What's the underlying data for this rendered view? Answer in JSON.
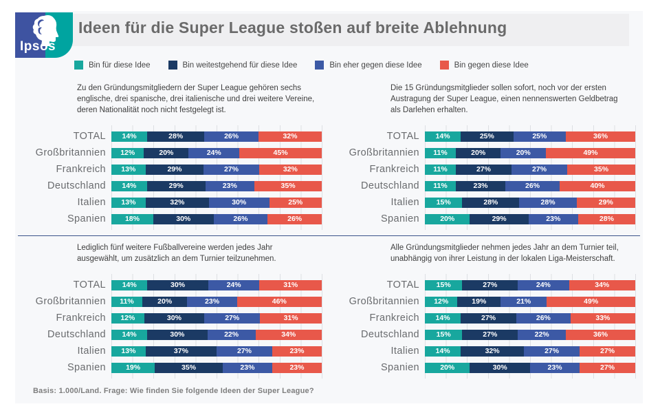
{
  "brand": {
    "logo_text": "Ipsos"
  },
  "header": {
    "title": "Ideen für die Super League stoßen auf breite Ablehnung"
  },
  "legend": {
    "items": [
      {
        "label": "Bin für diese Idee",
        "color": "#18a79e"
      },
      {
        "label": "Bin weitestgehend  für diese Idee",
        "color": "#1b3a64"
      },
      {
        "label": "Bin eher gegen  diese Idee",
        "color": "#3c59a5"
      },
      {
        "label": "Bin gegen  diese Idee",
        "color": "#e8584a"
      }
    ]
  },
  "footer": {
    "note": "Basis:  1.000/Land. Frage: Wie finden Sie folgende Ideen der Super League?"
  },
  "chart_data": [
    {
      "type": "bar",
      "orientation": "horizontal",
      "stacked": true,
      "unit": "%",
      "xlim": [
        0,
        100
      ],
      "grid": "vertical, every 10%",
      "legend_position": "top-shared",
      "title": "Zu den Gründungsmitgliedern der Super League gehören  sechs englische, drei spanische, drei italienische und drei weitere Vereine,  deren Nationalität noch nicht festgelegt ist.",
      "categories": [
        "TOTAL",
        "Großbritannien",
        "Frankreich",
        "Deutschland",
        "Italien",
        "Spanien"
      ],
      "series": [
        {
          "name": "Bin für diese Idee",
          "values": [
            14,
            12,
            13,
            14,
            13,
            18
          ]
        },
        {
          "name": "Bin weitestgehend für diese Idee",
          "values": [
            28,
            20,
            29,
            29,
            32,
            30
          ]
        },
        {
          "name": "Bin eher gegen diese Idee",
          "values": [
            26,
            24,
            27,
            23,
            30,
            26
          ]
        },
        {
          "name": "Bin gegen diese Idee",
          "values": [
            32,
            45,
            32,
            35,
            25,
            26
          ]
        }
      ]
    },
    {
      "type": "bar",
      "orientation": "horizontal",
      "stacked": true,
      "unit": "%",
      "xlim": [
        0,
        100
      ],
      "grid": "vertical, every 10%",
      "legend_position": "top-shared",
      "title": "Die 15 Gründungsmitglieder sollen sofort, noch vor der ersten Austragung der Super League,  einen nennenswerten Geldbetrag als Darlehen erhalten.",
      "categories": [
        "TOTAL",
        "Großbritannien",
        "Frankreich",
        "Deutschland",
        "Italien",
        "Spanien"
      ],
      "series": [
        {
          "name": "Bin für diese Idee",
          "values": [
            14,
            11,
            11,
            11,
            15,
            20
          ]
        },
        {
          "name": "Bin weitestgehend für diese Idee",
          "values": [
            25,
            20,
            27,
            23,
            28,
            29
          ]
        },
        {
          "name": "Bin eher gegen diese Idee",
          "values": [
            25,
            20,
            27,
            26,
            28,
            23
          ]
        },
        {
          "name": "Bin gegen diese Idee",
          "values": [
            36,
            49,
            35,
            40,
            29,
            28
          ]
        }
      ]
    },
    {
      "type": "bar",
      "orientation": "horizontal",
      "stacked": true,
      "unit": "%",
      "xlim": [
        0,
        100
      ],
      "grid": "vertical, every 10%",
      "legend_position": "top-shared",
      "title": "Lediglich fünf weitere  Fußballvereine werden  jedes Jahr ausgewählt, um  zusätzlich an dem Turnier teilzunehmen.",
      "categories": [
        "TOTAL",
        "Großbritannien",
        "Frankreich",
        "Deutschland",
        "Italien",
        "Spanien"
      ],
      "series": [
        {
          "name": "Bin für diese Idee",
          "values": [
            14,
            11,
            12,
            14,
            13,
            19
          ]
        },
        {
          "name": "Bin weitestgehend für diese Idee",
          "values": [
            30,
            20,
            30,
            30,
            37,
            35
          ]
        },
        {
          "name": "Bin eher gegen diese Idee",
          "values": [
            24,
            23,
            27,
            22,
            27,
            23
          ]
        },
        {
          "name": "Bin gegen diese Idee",
          "values": [
            31,
            46,
            31,
            34,
            23,
            23
          ]
        }
      ]
    },
    {
      "type": "bar",
      "orientation": "horizontal",
      "stacked": true,
      "unit": "%",
      "xlim": [
        0,
        100
      ],
      "grid": "vertical, every 10%",
      "legend_position": "top-shared",
      "title": "Alle Gründungsmitglieder nehmen  jedes Jahr an dem Turnier teil, unabhängig von ihrer Leistung  in der lokalen Liga-Meisterschaft.",
      "categories": [
        "TOTAL",
        "Großbritannien",
        "Frankreich",
        "Deutschland",
        "Italien",
        "Spanien"
      ],
      "series": [
        {
          "name": "Bin für diese Idee",
          "values": [
            15,
            12,
            14,
            15,
            14,
            20
          ]
        },
        {
          "name": "Bin weitestgehend für diese Idee",
          "values": [
            27,
            19,
            27,
            27,
            32,
            30
          ]
        },
        {
          "name": "Bin eher gegen diese Idee",
          "values": [
            24,
            21,
            26,
            22,
            27,
            23
          ]
        },
        {
          "name": "Bin gegen diese Idee",
          "values": [
            34,
            49,
            33,
            36,
            27,
            27
          ]
        }
      ]
    }
  ]
}
